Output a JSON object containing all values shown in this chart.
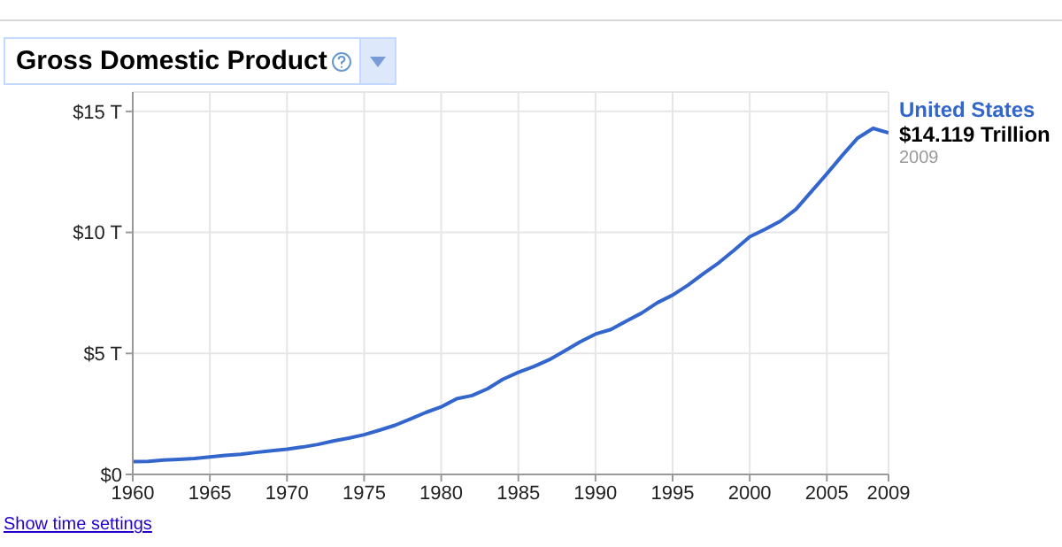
{
  "chart_data": {
    "type": "line",
    "title": "Gross Domestic Product",
    "x": [
      1960,
      1961,
      1962,
      1963,
      1964,
      1965,
      1966,
      1967,
      1968,
      1969,
      1970,
      1971,
      1972,
      1973,
      1974,
      1975,
      1976,
      1977,
      1978,
      1979,
      1980,
      1981,
      1982,
      1983,
      1984,
      1985,
      1986,
      1987,
      1988,
      1989,
      1990,
      1991,
      1992,
      1993,
      1994,
      1995,
      1996,
      1997,
      1998,
      1999,
      2000,
      2001,
      2002,
      2003,
      2004,
      2005,
      2006,
      2007,
      2008,
      2009
    ],
    "series": [
      {
        "name": "United States",
        "color": "#3366cc",
        "values": [
          0.53,
          0.54,
          0.59,
          0.62,
          0.66,
          0.72,
          0.79,
          0.83,
          0.91,
          0.98,
          1.04,
          1.13,
          1.24,
          1.38,
          1.5,
          1.64,
          1.83,
          2.03,
          2.29,
          2.56,
          2.79,
          3.13,
          3.26,
          3.54,
          3.93,
          4.22,
          4.46,
          4.74,
          5.1,
          5.48,
          5.8,
          5.99,
          6.34,
          6.67,
          7.09,
          7.41,
          7.82,
          8.3,
          8.75,
          9.27,
          9.82,
          10.13,
          10.47,
          10.96,
          11.69,
          12.42,
          13.18,
          13.9,
          14.3,
          14.119
        ]
      }
    ],
    "xlim": [
      1960,
      2009
    ],
    "xticks": [
      1960,
      1965,
      1970,
      1975,
      1980,
      1985,
      1990,
      1995,
      2000,
      2005,
      2009
    ],
    "ylim": [
      0,
      15.8
    ],
    "yticks": [
      {
        "value": 0,
        "label": "$0"
      },
      {
        "value": 5,
        "label": "$5 T"
      },
      {
        "value": 10,
        "label": "$10 T"
      },
      {
        "value": 15,
        "label": "$15 T"
      }
    ],
    "grid": true,
    "marker": "none",
    "line_style": "solid",
    "annotations": [
      "$14.119 Trillion",
      "2009",
      "Show time settings"
    ]
  }
}
